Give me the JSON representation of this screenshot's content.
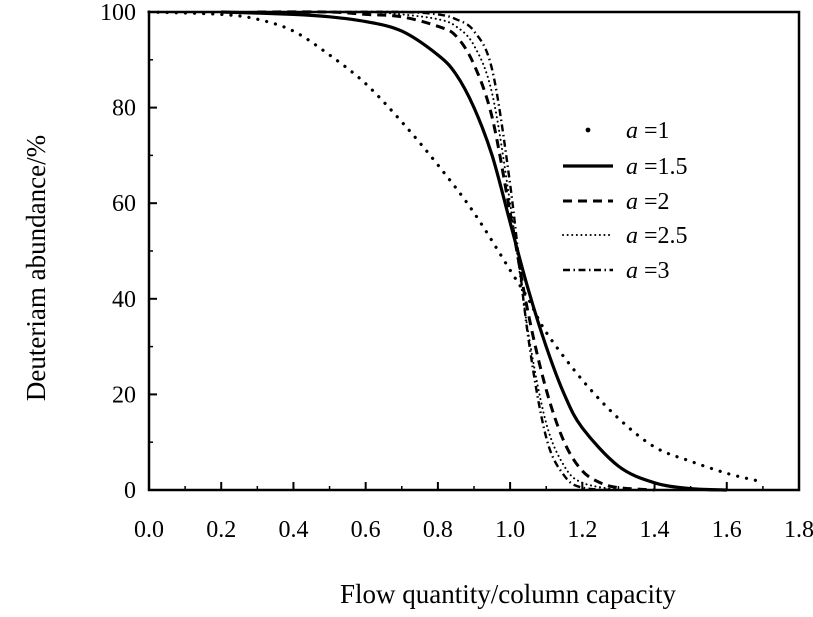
{
  "chart_data": {
    "type": "line",
    "xlabel": "Flow quantity/column capacity",
    "ylabel": "Deuteriam abundance/%",
    "xlim": [
      0.0,
      1.8
    ],
    "ylim": [
      0,
      100
    ],
    "x_ticks": [
      "0.0",
      "0.2",
      "0.4",
      "0.6",
      "0.8",
      "1.0",
      "1.2",
      "1.4",
      "1.6",
      "1.8"
    ],
    "y_ticks": [
      "0",
      "20",
      "40",
      "60",
      "80",
      "100"
    ],
    "grid": false,
    "legend_position": "right",
    "series": [
      {
        "name": "a =1",
        "legend_prefix": "a",
        "legend_value": " =1",
        "style": "dotted",
        "x": [
          0.0,
          0.2,
          0.3,
          0.4,
          0.5,
          0.6,
          0.7,
          0.8,
          0.9,
          1.0,
          1.05,
          1.1,
          1.2,
          1.3,
          1.4,
          1.5,
          1.6,
          1.68
        ],
        "y": [
          100,
          99.5,
          98.5,
          96,
          91,
          85,
          77,
          68,
          58,
          46,
          40,
          33,
          23,
          15,
          9,
          6,
          3.5,
          2
        ]
      },
      {
        "name": "a =1.5",
        "legend_prefix": "a",
        "legend_value": " =1.5",
        "style": "solid",
        "x": [
          0.2,
          0.4,
          0.5,
          0.6,
          0.7,
          0.8,
          0.85,
          0.9,
          0.95,
          1.0,
          1.05,
          1.1,
          1.15,
          1.2,
          1.3,
          1.4,
          1.5,
          1.6
        ],
        "y": [
          100,
          99.5,
          99,
          98,
          96,
          91,
          87,
          80,
          70,
          56,
          42,
          30,
          20,
          13,
          5,
          1.5,
          0.3,
          0
        ]
      },
      {
        "name": "a =2",
        "legend_prefix": "a",
        "legend_value": " =2",
        "style": "dashed",
        "x": [
          0.3,
          0.5,
          0.6,
          0.7,
          0.8,
          0.85,
          0.9,
          0.95,
          1.0,
          1.05,
          1.1,
          1.15,
          1.2,
          1.25,
          1.3,
          1.4
        ],
        "y": [
          100,
          100,
          99.5,
          99,
          97,
          95,
          89,
          78,
          58,
          37,
          21,
          10,
          4,
          1.5,
          0.5,
          0
        ]
      },
      {
        "name": "a =2.5",
        "legend_prefix": "a",
        "legend_value": " =2.5",
        "style": "fine-dotted",
        "x": [
          0.4,
          0.6,
          0.7,
          0.8,
          0.85,
          0.9,
          0.95,
          1.0,
          1.05,
          1.1,
          1.15,
          1.2,
          1.3
        ],
        "y": [
          100,
          100,
          99.5,
          98.5,
          97,
          93,
          83,
          60,
          33,
          14,
          5,
          1.5,
          0
        ]
      },
      {
        "name": "a =3",
        "legend_prefix": "a",
        "legend_value": " =3",
        "style": "dash-dot",
        "x": [
          0.5,
          0.7,
          0.8,
          0.85,
          0.9,
          0.95,
          1.0,
          1.05,
          1.1,
          1.15,
          1.2,
          1.3
        ],
        "y": [
          100,
          100,
          99.5,
          98.5,
          96,
          88,
          64,
          32,
          11,
          3,
          0.5,
          0
        ]
      }
    ]
  }
}
